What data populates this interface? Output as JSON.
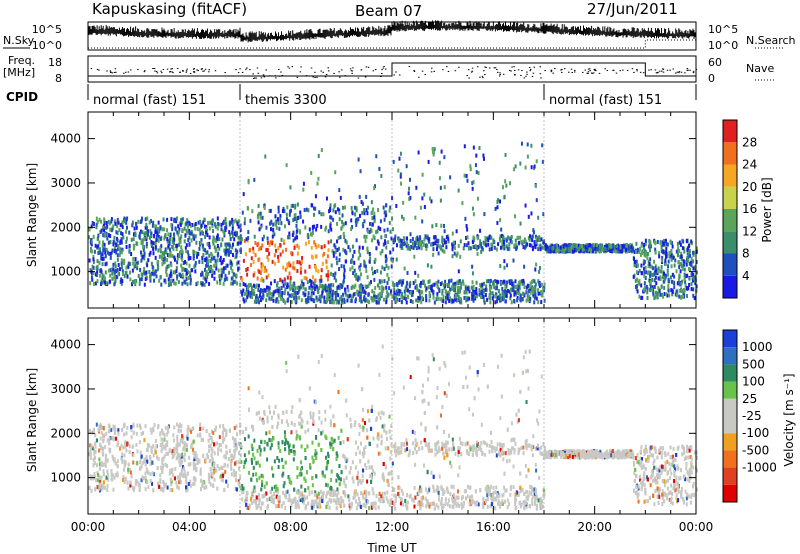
{
  "header": {
    "station": "Kapuskasing (fitACF)",
    "beam": "Beam 07",
    "date": "27/Jun/2011"
  },
  "top_panels": {
    "nsky_label": "N.Sky",
    "nsearch_label": "N.Search",
    "noise_ticks": [
      "10^5",
      "10^0"
    ],
    "freq_label": "Freq.",
    "freq_unit": "[MHz]",
    "freq_ticks": [
      "18",
      "8"
    ],
    "nave_label": "Nave",
    "nave_ticks": [
      "60",
      "0"
    ],
    "cpid_label": "CPID"
  },
  "cpid_segments": [
    {
      "label": "normal (fast) 151",
      "start": 0,
      "end": 6
    },
    {
      "label": "themis 3300",
      "start": 6,
      "end": 18
    },
    {
      "label": "normal (fast) 151",
      "start": 18,
      "end": 24
    }
  ],
  "colors": {
    "power_scale": [
      "#1a1ae6",
      "#1f4fbf",
      "#3a8f6a",
      "#5aa55a",
      "#c8d24a",
      "#f5a623",
      "#f07020",
      "#e02020"
    ],
    "velocity_scale": [
      "#1a3fd9",
      "#2f6fc0",
      "#2e8a60",
      "#69c24a",
      "#c8c8c4",
      "#c8c8c4",
      "#f0a020",
      "#f07020",
      "#e04020",
      "#e00000"
    ]
  },
  "chart_data": [
    {
      "type": "heatmap",
      "name": "power",
      "xlabel": "",
      "ylabel": "Slant Range [km]",
      "xlim": [
        0,
        24
      ],
      "ylim": [
        180,
        4600
      ],
      "yticks": [
        "1000",
        "2000",
        "3000",
        "4000"
      ],
      "colorbar_label": "Power [dB]",
      "colorbar_ticks": [
        "4",
        "8",
        "12",
        "16",
        "20",
        "24",
        "28"
      ],
      "grid": false
    },
    {
      "type": "heatmap",
      "name": "velocity",
      "xlabel": "Time UT",
      "ylabel": "Slant Range [km]",
      "xlim": [
        0,
        24
      ],
      "ylim": [
        180,
        4600
      ],
      "xticks": [
        "00:00",
        "04:00",
        "08:00",
        "12:00",
        "16:00",
        "20:00",
        "00:00"
      ],
      "yticks": [
        "1000",
        "2000",
        "3000",
        "4000"
      ],
      "colorbar_label": "Velocity [m s⁻¹]",
      "colorbar_ticks": [
        "1000",
        "500",
        "100",
        "25",
        "-25",
        "-100",
        "-500",
        "-1000"
      ],
      "grid": false
    }
  ]
}
